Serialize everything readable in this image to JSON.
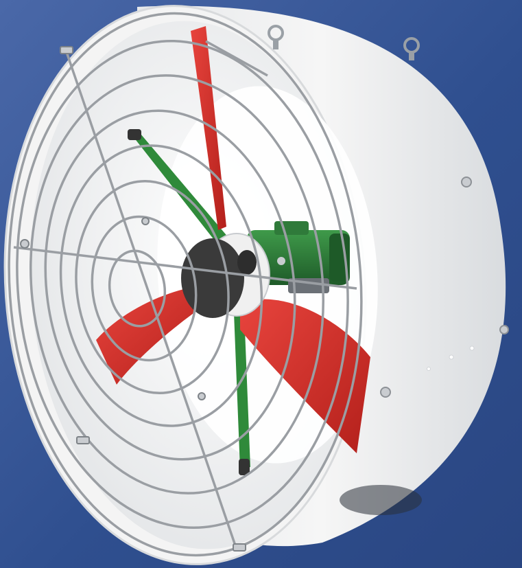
{
  "image": {
    "subject": "circulation fan",
    "parts": [
      "housing",
      "front-guard",
      "blades",
      "support-arms",
      "hub",
      "motor",
      "eye-bolts"
    ]
  },
  "colors": {
    "background": "#2f4f8f",
    "background_light": "#4a68a8",
    "housing": "#f2f2f2",
    "housing_shadow": "#cfd2d6",
    "inner": "#fafafa",
    "guard_wire": "#9a9ea3",
    "blade": "#d42a24",
    "blade_dark": "#a8201c",
    "arm": "#2f8a3a",
    "motor": "#2f7a3a",
    "motor_dark": "#1e5a28",
    "hub": "#3a3a3a",
    "hub_ring": "#f0f0f0"
  }
}
